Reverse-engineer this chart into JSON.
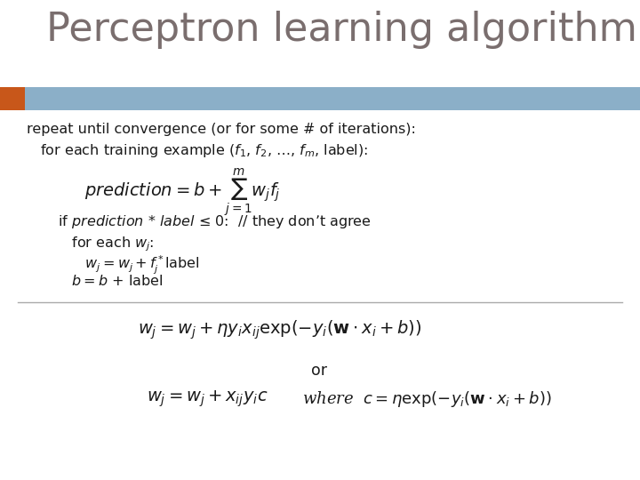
{
  "title": "Perceptron learning algorithm!",
  "title_color": "#7A6E6E",
  "title_fontsize": 32,
  "bg_color": "#FFFFFF",
  "header_bar_color": "#8BAFC8",
  "header_bar_orange": "#C8571A",
  "line1": "repeat until convergence (or for some # of iterations):",
  "line2": "   for each training example ($f_1$, $f_2$, …, $f_m$, label):",
  "formula1": "$prediction = b + \\sum_{j=1}^{m} w_j f_j$",
  "line3": "   if $prediction$ * $label$ ≤ 0:  // they don’t agree",
  "line4": "      for each $w_j$:",
  "line5": "         $w_j = w_j + f_j^*$label",
  "line6": "      $b = b$ + label",
  "formula2": "$w_j = w_j + \\eta y_i x_{ij} \\exp(-y_i(\\mathbf{w} \\cdot x_i + b))$",
  "line_or": "or",
  "formula3": "$w_j = w_j + x_{ij} y_i c$",
  "formula3b": "where  $c = \\eta \\exp(-y_i(\\mathbf{w} \\cdot x_i + b))$",
  "text_color": "#1A1A1A",
  "body_fontsize": 11.5,
  "formula_fontsize": 13
}
